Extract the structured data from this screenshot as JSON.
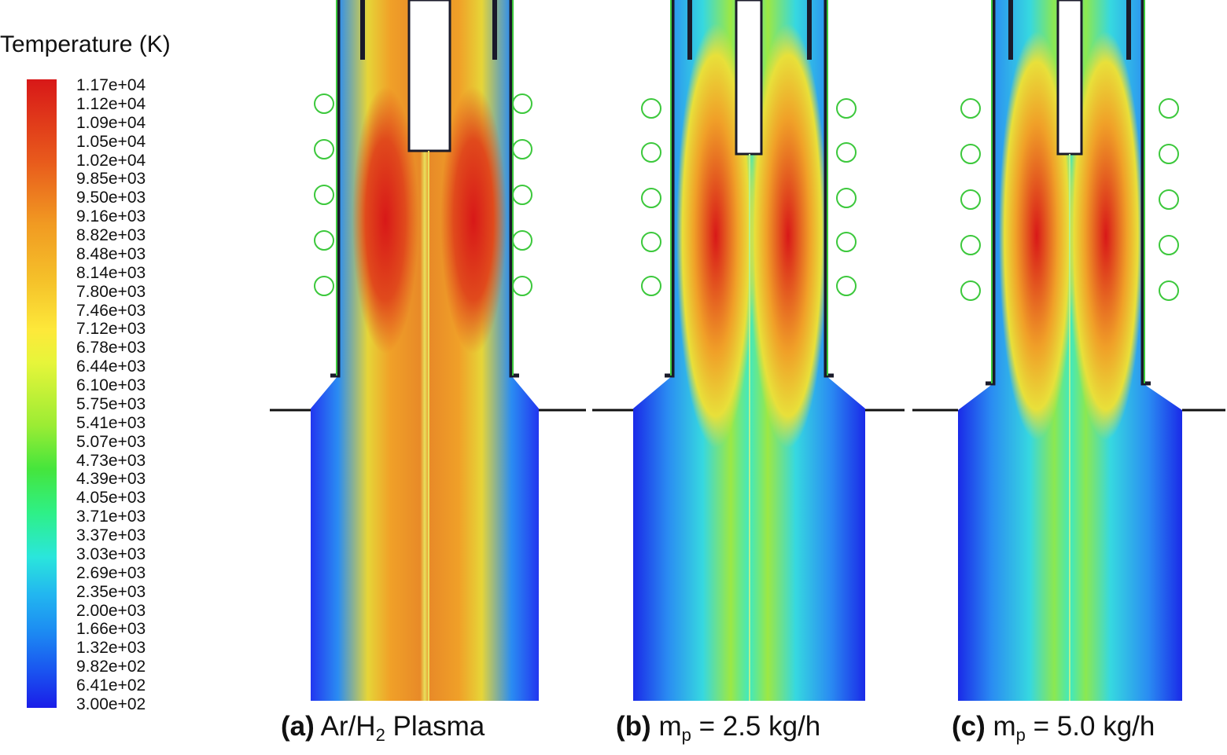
{
  "legend": {
    "title": "Temperature (K)",
    "labels": [
      "1.17e+04",
      "1.12e+04",
      "1.09e+04",
      "1.05e+04",
      "1.02e+04",
      "9.85e+03",
      "9.50e+03",
      "9.16e+03",
      "8.82e+03",
      "8.48e+03",
      "8.14e+03",
      "7.80e+03",
      "7.46e+03",
      "7.12e+03",
      "6.78e+03",
      "6.44e+03",
      "6.10e+03",
      "5.75e+03",
      "5.41e+03",
      "5.07e+03",
      "4.73e+03",
      "4.39e+03",
      "4.05e+03",
      "3.71e+03",
      "3.37e+03",
      "3.03e+03",
      "2.69e+03",
      "2.35e+03",
      "2.00e+03",
      "1.66e+03",
      "1.32e+03",
      "9.82e+02",
      "6.41e+02",
      "3.00e+02"
    ]
  },
  "panels": [
    {
      "tag": "(a)",
      "text_before": "Ar/H",
      "subscript": "2",
      "text_after": " Plasma"
    },
    {
      "tag": "(b)",
      "text_before": "m",
      "subscript": "p",
      "text_after": " = 2.5 kg/h"
    },
    {
      "tag": "(c)",
      "text_before": "m",
      "subscript": "p",
      "text_after": " = 5.0 kg/h"
    }
  ],
  "colors": {
    "hot": "#d81818",
    "cold": "#1a1de8",
    "coil": "#3cc83c",
    "wall": "#1a1a2a"
  }
}
